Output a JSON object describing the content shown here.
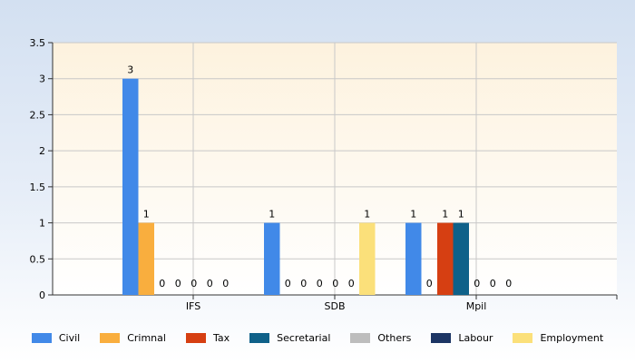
{
  "chart_data": {
    "type": "bar",
    "categories": [
      "IFS",
      "SDB",
      "Mpil"
    ],
    "series": [
      {
        "name": "Civil",
        "values": [
          3,
          1,
          1
        ],
        "color": "#4189e8"
      },
      {
        "name": "Crimnal",
        "values": [
          1,
          0,
          0
        ],
        "color": "#f9ae3e"
      },
      {
        "name": "Tax",
        "values": [
          0,
          0,
          1
        ],
        "color": "#d63f12"
      },
      {
        "name": "Secretarial",
        "values": [
          0,
          0,
          1
        ],
        "color": "#0f6189"
      },
      {
        "name": "Others",
        "values": [
          0,
          0,
          0
        ],
        "color": "#bdbdbd"
      },
      {
        "name": "Labour",
        "values": [
          0,
          0,
          0
        ],
        "color": "#1c3564"
      },
      {
        "name": "Employment",
        "values": [
          0,
          1,
          0
        ],
        "color": "#fbe07a"
      }
    ],
    "yticks": [
      "0",
      "0.5",
      "1",
      "1.5",
      "2",
      "2.5",
      "3",
      "3.5"
    ],
    "ylim": [
      0,
      3.5
    ],
    "grid": true,
    "legend_position": "bottom"
  }
}
